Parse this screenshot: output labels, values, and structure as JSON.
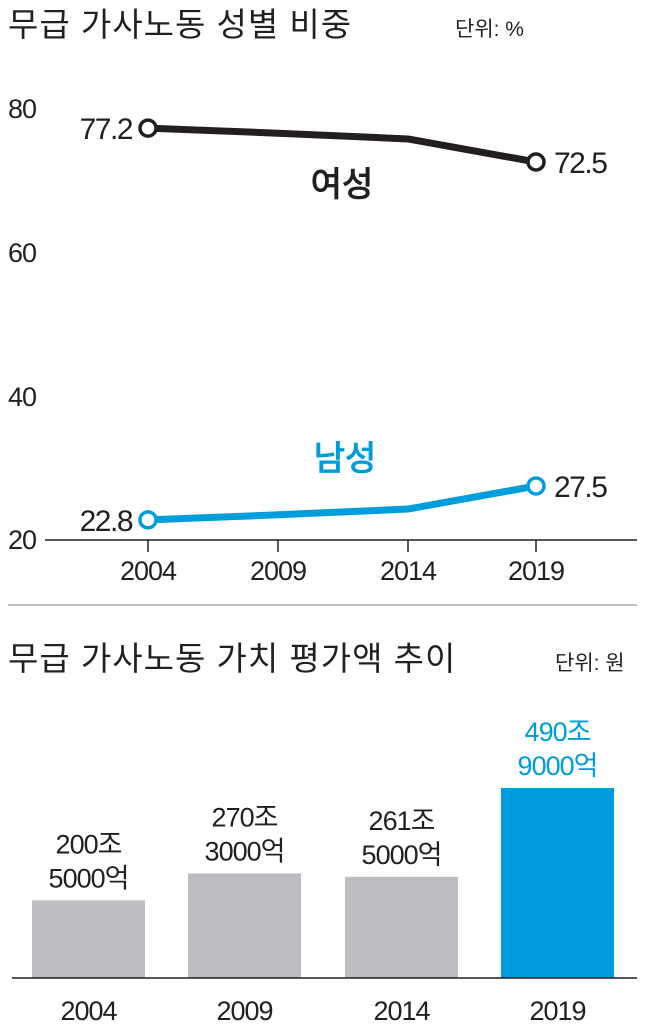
{
  "chart_data": [
    {
      "type": "line",
      "title": "무급 가사노동 성별 비중",
      "unit": "단위: %",
      "x": [
        "2004",
        "2009",
        "2014",
        "2019"
      ],
      "yticks": [
        "80",
        "60",
        "40",
        "20"
      ],
      "ylim": [
        20,
        80
      ],
      "grid": false,
      "series": [
        {
          "name": "여성",
          "values": [
            77.2,
            76.5,
            75.7,
            72.5
          ],
          "labels": [
            "77.2",
            "",
            "",
            "72.5"
          ],
          "color": "#231f20"
        },
        {
          "name": "남성",
          "values": [
            22.8,
            23.5,
            24.3,
            27.5
          ],
          "labels": [
            "22.8",
            "",
            "",
            "27.5"
          ],
          "color": "#009ddc"
        }
      ]
    },
    {
      "type": "bar",
      "title": "무급 가사노동 가치 평가액 추이",
      "unit": "단위: 원",
      "categories": [
        "2004",
        "2009",
        "2014",
        "2019"
      ],
      "values": [
        2005000,
        2703000,
        2615000,
        4909000
      ],
      "labels": [
        [
          "200조",
          "5000억"
        ],
        [
          "270조",
          "3000억"
        ],
        [
          "261조",
          "5000억"
        ],
        [
          "490조",
          "9000억"
        ]
      ],
      "colors": [
        "#bcbdc0",
        "#bcbdc0",
        "#bcbdc0",
        "#009ddc"
      ],
      "highlight_color": "#009ddc"
    }
  ]
}
